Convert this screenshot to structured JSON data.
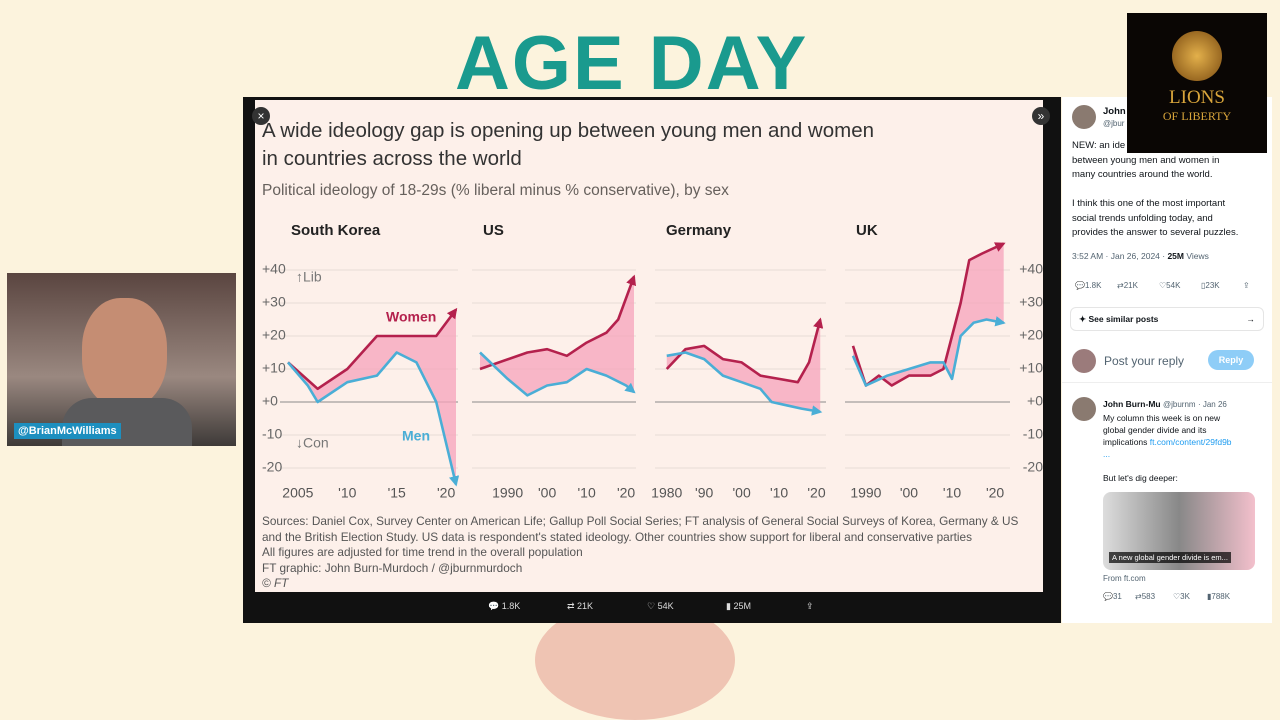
{
  "banner": "AGE DAY",
  "webcam": {
    "handle": "@BrianMcWilliams"
  },
  "logo": {
    "line1": "LIONS",
    "line2": "OF LIBERTY"
  },
  "figure": {
    "title_lines": [
      "A wide ideology gap is opening up between young men and women",
      "in countries across the world"
    ],
    "subtitle": "Political ideology of 18-29s (% liberal minus % conservative), by sex",
    "sources": [
      "Sources: Daniel Cox, Survey Center on American Life; Gallup Poll Social Series; FT analysis of General Social Surveys of Korea, Germany & US",
      "and the British Election Study. US data is respondent's stated ideology. Other countries show support for liberal and conservative parties",
      "All figures are adjusted for time trend in the overall population"
    ],
    "credit": "FT graphic: John Burn-Murdoch / @jburnmurdoch",
    "copyright": "© FT"
  },
  "chart_data": [
    {
      "type": "line",
      "title": "South Korea",
      "xlim": [
        2004,
        2021
      ],
      "xticks": [
        {
          "value": 2005,
          "label": "2005"
        },
        {
          "value": 2010,
          "label": "'10"
        },
        {
          "value": 2015,
          "label": "'15"
        },
        {
          "value": 2020,
          "label": "'20"
        }
      ],
      "ylim": [
        -25,
        50
      ],
      "yticks": [
        {
          "value": -20,
          "label": "-20"
        },
        {
          "value": -10,
          "label": "-10"
        },
        {
          "value": 0,
          "label": "+0"
        },
        {
          "value": 10,
          "label": "+10"
        },
        {
          "value": 20,
          "label": "+20"
        },
        {
          "value": 30,
          "label": "+30"
        },
        {
          "value": 40,
          "label": "+40"
        }
      ],
      "y_labels": "left",
      "annotations": [
        "↑Lib",
        "↓Con"
      ],
      "series": [
        {
          "name": "Women",
          "color": "#b4214d",
          "x": [
            2004,
            2007,
            2010,
            2013,
            2016,
            2019,
            2021
          ],
          "values": [
            12,
            4,
            10,
            20,
            20,
            20,
            28
          ]
        },
        {
          "name": "Men",
          "color": "#4aaed6",
          "x": [
            2004,
            2006,
            2007,
            2010,
            2013,
            2015,
            2017,
            2019,
            2021
          ],
          "values": [
            12,
            5,
            0,
            6,
            8,
            15,
            12,
            0,
            -25
          ]
        }
      ]
    },
    {
      "type": "line",
      "title": "US",
      "xlim": [
        1983,
        2022
      ],
      "xticks": [
        {
          "value": 1990,
          "label": "1990"
        },
        {
          "value": 2000,
          "label": "'00"
        },
        {
          "value": 2010,
          "label": "'10"
        },
        {
          "value": 2020,
          "label": "'20"
        }
      ],
      "ylim": [
        -25,
        50
      ],
      "yticks": [
        -20,
        -10,
        0,
        10,
        20,
        30,
        40
      ],
      "series": [
        {
          "color": "#b4214d",
          "x": [
            1983,
            1995,
            2000,
            2005,
            2010,
            2015,
            2018,
            2022
          ],
          "values": [
            10,
            15,
            16,
            14,
            18,
            21,
            25,
            38
          ]
        },
        {
          "color": "#4aaed6",
          "x": [
            1983,
            1990,
            1995,
            2000,
            2005,
            2010,
            2015,
            2020,
            2022
          ],
          "values": [
            15,
            7,
            2,
            5,
            6,
            10,
            8,
            5,
            3
          ]
        }
      ]
    },
    {
      "type": "line",
      "title": "Germany",
      "xlim": [
        1979,
        2022
      ],
      "xticks": [
        {
          "value": 1980,
          "label": "1980"
        },
        {
          "value": 1990,
          "label": "'90"
        },
        {
          "value": 2000,
          "label": "'00"
        },
        {
          "value": 2010,
          "label": "'10"
        },
        {
          "value": 2020,
          "label": "'20"
        }
      ],
      "ylim": [
        -25,
        50
      ],
      "yticks": [
        -20,
        -10,
        0,
        10,
        20,
        30,
        40
      ],
      "series": [
        {
          "color": "#b4214d",
          "x": [
            1980,
            1985,
            1990,
            1995,
            2000,
            2005,
            2010,
            2015,
            2018,
            2021
          ],
          "values": [
            10,
            16,
            17,
            13,
            12,
            8,
            7,
            6,
            12,
            25
          ]
        },
        {
          "color": "#4aaed6",
          "x": [
            1980,
            1985,
            1990,
            1995,
            2000,
            2005,
            2008,
            2012,
            2016,
            2021
          ],
          "values": [
            14,
            15,
            13,
            8,
            6,
            4,
            0,
            -1,
            -2,
            -3
          ]
        }
      ]
    },
    {
      "type": "line",
      "title": "UK",
      "xlim": [
        1987,
        2023
      ],
      "xticks": [
        {
          "value": 1990,
          "label": "1990"
        },
        {
          "value": 2000,
          "label": "'00"
        },
        {
          "value": 2010,
          "label": "'10"
        },
        {
          "value": 2020,
          "label": "'20"
        }
      ],
      "ylim": [
        -25,
        50
      ],
      "yticks": [
        {
          "value": -20,
          "label": "-20"
        },
        {
          "value": -10,
          "label": "-10"
        },
        {
          "value": 0,
          "label": "+0"
        },
        {
          "value": 10,
          "label": "+10"
        },
        {
          "value": 20,
          "label": "+20"
        },
        {
          "value": 30,
          "label": "+30"
        },
        {
          "value": 40,
          "label": "+40"
        }
      ],
      "y_labels": "right",
      "series": [
        {
          "color": "#b4214d",
          "x": [
            1987,
            1990,
            1993,
            1996,
            2000,
            2005,
            2008,
            2012,
            2014,
            2017,
            2022
          ],
          "values": [
            17,
            5,
            8,
            5,
            8,
            8,
            10,
            30,
            43,
            45,
            48
          ]
        },
        {
          "color": "#4aaed6",
          "x": [
            1987,
            1990,
            1995,
            2000,
            2005,
            2008,
            2010,
            2012,
            2015,
            2018,
            2022
          ],
          "values": [
            14,
            5,
            8,
            10,
            12,
            12,
            7,
            20,
            24,
            25,
            24
          ]
        }
      ]
    }
  ],
  "toolbar": {
    "replies": "1.8K",
    "reposts": "21K",
    "likes": "54K",
    "views": "25M"
  },
  "tweet": {
    "name": "John",
    "handle": "@jbur",
    "lines": [
      "NEW: an ide",
      "between young men and women in",
      "many countries around the world."
    ],
    "lines2": [
      "I think this one of the most important",
      "social trends unfolding today, and",
      "provides the answer to several puzzles."
    ],
    "time": "3:52 AM · Jan 26, 2024 · ",
    "views": "25M",
    "views_label": " Views",
    "stats": [
      "1.8K",
      "21K",
      "54K",
      "23K"
    ],
    "similar": "See similar posts",
    "reply_prompt": "Post your reply",
    "reply_button": "Reply"
  },
  "reply": {
    "name": "John Burn-Mu",
    "handle": "@jburnm",
    "date": "· Jan 26",
    "lines": [
      "My column this week is on new",
      "global gender divide and its",
      "implications "
    ],
    "link": "ft.com/content/29fd9b",
    "more": "...",
    "dig": "But let's dig deeper:",
    "card": "A new global gender divide is em...",
    "from": "From ft.com",
    "stats": [
      "31",
      "583",
      "3K",
      "788K"
    ]
  }
}
